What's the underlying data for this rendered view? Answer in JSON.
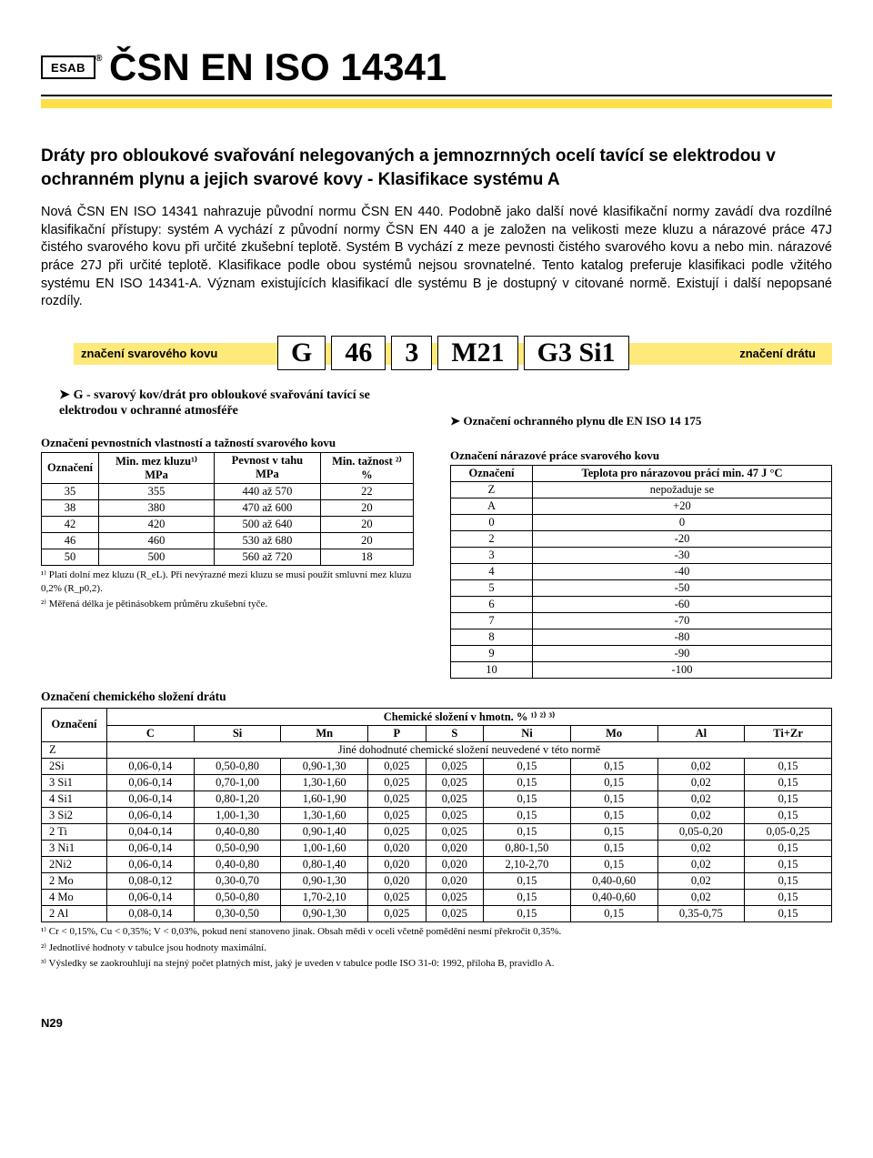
{
  "logo_text": "ESAB",
  "standard_title": "ČSN EN ISO 14341",
  "heading": "Dráty pro obloukové svařování nelegovaných a jemnozrnných ocelí tavící se elektrodou v ochranném plynu a jejich svarové kovy - Klasifikace systému A",
  "body": "Nová ČSN EN ISO 14341 nahrazuje původní normu ČSN EN 440. Podobně jako další nové klasifikační normy zavádí dva rozdílné klasifikační přístupy: systém A vychází z původní normy ČSN EN 440 a je založen na velikosti meze kluzu a nárazové práce 47J čistého svarového kovu při určité zkušební teplotě. Systém B vychází z meze pevnosti čistého svarového kovu a nebo min. nárazové práce 27J při určité teplotě. Klasifikace podle obou systémů nejsou srovnatelné. Tento katalog preferuje klasifikaci podle vžitého systému EN ISO 14341-A. Význam existujících klasifikací dle systému B je dostupný v citované normě. Existují i další nepopsané rozdíly.",
  "desig_label_left": "značení svarového kovu",
  "desig_label_right": "značení drátu",
  "desig_parts": [
    "G",
    "46",
    "3",
    "M21",
    "G3 Si1"
  ],
  "g_def": "G - svarový kov/drát pro obloukové svařování tavící se elektrodou v ochranné atmosféře",
  "tableA": {
    "title": "Označení pevnostních vlastností a tažností svarového kovu",
    "headers": [
      "Označení",
      "Min. mez kluzu¹⁾ MPa",
      "Pevnost v tahu MPa",
      "Min. tažnost ²⁾ %"
    ],
    "rows": [
      [
        "35",
        "355",
        "440 až 570",
        "22"
      ],
      [
        "38",
        "380",
        "470 až 600",
        "20"
      ],
      [
        "42",
        "420",
        "500 až 640",
        "20"
      ],
      [
        "46",
        "460",
        "530 až 680",
        "20"
      ],
      [
        "50",
        "500",
        "560 až 720",
        "18"
      ]
    ],
    "footnotes": [
      "¹⁾ Platí dolní mez kluzu (R_eL). Při nevýrazné mezi kluzu se musí použít smluvní mez kluzu 0,2% (R_p0,2).",
      "²⁾ Měřená délka je pětinásobkem průměru zkušební tyče."
    ]
  },
  "right_gas_note": "Označení ochranného plynu dle EN ISO 14 175",
  "tableB": {
    "title": "Označení nárazové práce svarového kovu",
    "headers": [
      "Označení",
      "Teplota pro nárazovou prácí min. 47 J °C"
    ],
    "rows": [
      [
        "Z",
        "nepožaduje se"
      ],
      [
        "A",
        "+20"
      ],
      [
        "0",
        "0"
      ],
      [
        "2",
        "-20"
      ],
      [
        "3",
        "-30"
      ],
      [
        "4",
        "-40"
      ],
      [
        "5",
        "-50"
      ],
      [
        "6",
        "-60"
      ],
      [
        "7",
        "-70"
      ],
      [
        "8",
        "-80"
      ],
      [
        "9",
        "-90"
      ],
      [
        "10",
        "-100"
      ]
    ]
  },
  "chem": {
    "title": "Označení chemického složení drátu",
    "super_header": "Chemické složení v hmotn. % ¹⁾ ²⁾ ³⁾",
    "cols": [
      "Označení",
      "C",
      "Si",
      "Mn",
      "P",
      "S",
      "Ni",
      "Mo",
      "Al",
      "Ti+Zr"
    ],
    "z_row_text": "Jiné dohodnuté chemické složení neuvedené v této normě",
    "rows": [
      [
        "2Si",
        "0,06-0,14",
        "0,50-0,80",
        "0,90-1,30",
        "0,025",
        "0,025",
        "0,15",
        "0,15",
        "0,02",
        "0,15"
      ],
      [
        "3 Si1",
        "0,06-0,14",
        "0,70-1,00",
        "1,30-1,60",
        "0,025",
        "0,025",
        "0,15",
        "0,15",
        "0,02",
        "0,15"
      ],
      [
        "4 Si1",
        "0,06-0,14",
        "0,80-1,20",
        "1,60-1,90",
        "0,025",
        "0,025",
        "0,15",
        "0,15",
        "0,02",
        "0,15"
      ],
      [
        "3 Si2",
        "0,06-0,14",
        "1,00-1,30",
        "1,30-1,60",
        "0,025",
        "0,025",
        "0,15",
        "0,15",
        "0,02",
        "0,15"
      ],
      [
        "2 Ti",
        "0,04-0,14",
        "0,40-0,80",
        "0,90-1,40",
        "0,025",
        "0,025",
        "0,15",
        "0,15",
        "0,05-0,20",
        "0,05-0,25"
      ],
      [
        "3 Ni1",
        "0,06-0,14",
        "0,50-0,90",
        "1,00-1,60",
        "0,020",
        "0,020",
        "0,80-1,50",
        "0,15",
        "0,02",
        "0,15"
      ],
      [
        "2Ni2",
        "0,06-0,14",
        "0,40-0,80",
        "0,80-1,40",
        "0,020",
        "0,020",
        "2,10-2,70",
        "0,15",
        "0,02",
        "0,15"
      ],
      [
        "2 Mo",
        "0,08-0,12",
        "0,30-0,70",
        "0,90-1,30",
        "0,020",
        "0,020",
        "0,15",
        "0,40-0,60",
        "0,02",
        "0,15"
      ],
      [
        "4 Mo",
        "0,06-0,14",
        "0,50-0,80",
        "1,70-2,10",
        "0,025",
        "0,025",
        "0,15",
        "0,40-0,60",
        "0,02",
        "0,15"
      ],
      [
        "2 Al",
        "0,08-0,14",
        "0,30-0,50",
        "0,90-1,30",
        "0,025",
        "0,025",
        "0,15",
        "0,15",
        "0,35-0,75",
        "0,15"
      ]
    ],
    "footnotes": [
      "¹⁾ Cr < 0,15%, Cu < 0,35%; V < 0,03%, pokud není stanoveno jinak. Obsah mědi v oceli včetně pomědění nesmí překročit 0,35%.",
      "²⁾ Jednotlivé hodnoty v tabulce jsou hodnoty maximální.",
      "³⁾ Výsledky se zaokrouhlují na stejný počet platných míst, jaký je uveden v tabulce podle ISO 31-0: 1992, příloha B, pravidlo A."
    ]
  },
  "page_number": "N29"
}
